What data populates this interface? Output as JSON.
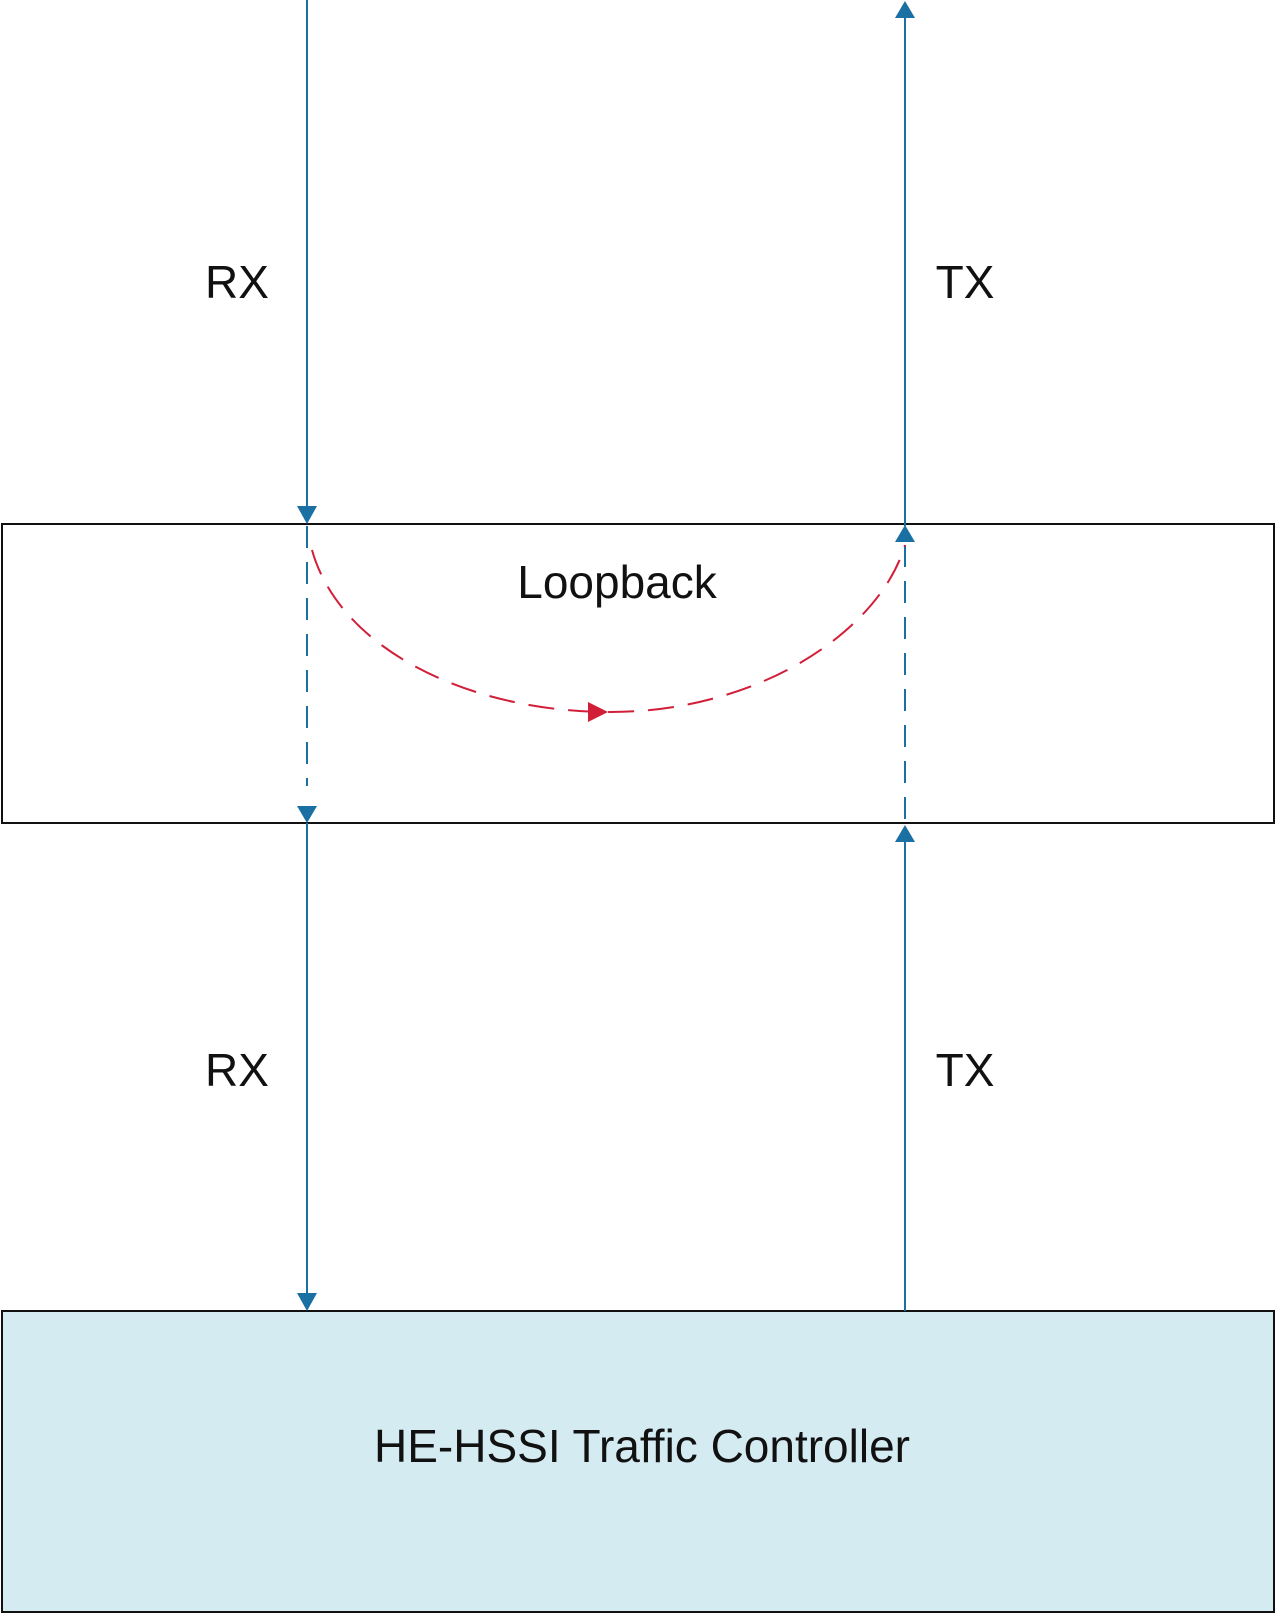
{
  "labels": {
    "rx_upper": "RX",
    "tx_upper": "TX",
    "rx_lower": "RX",
    "tx_lower": "TX",
    "loopback": "Loopback",
    "traffic_controller": "HE-HSSI Traffic Controller"
  },
  "colors": {
    "signal_line": "#1a6fa3",
    "loopback_path": "#d11f3a",
    "box_stroke": "#111111",
    "controller_fill": "#d4ebf2",
    "text": "#111111"
  }
}
